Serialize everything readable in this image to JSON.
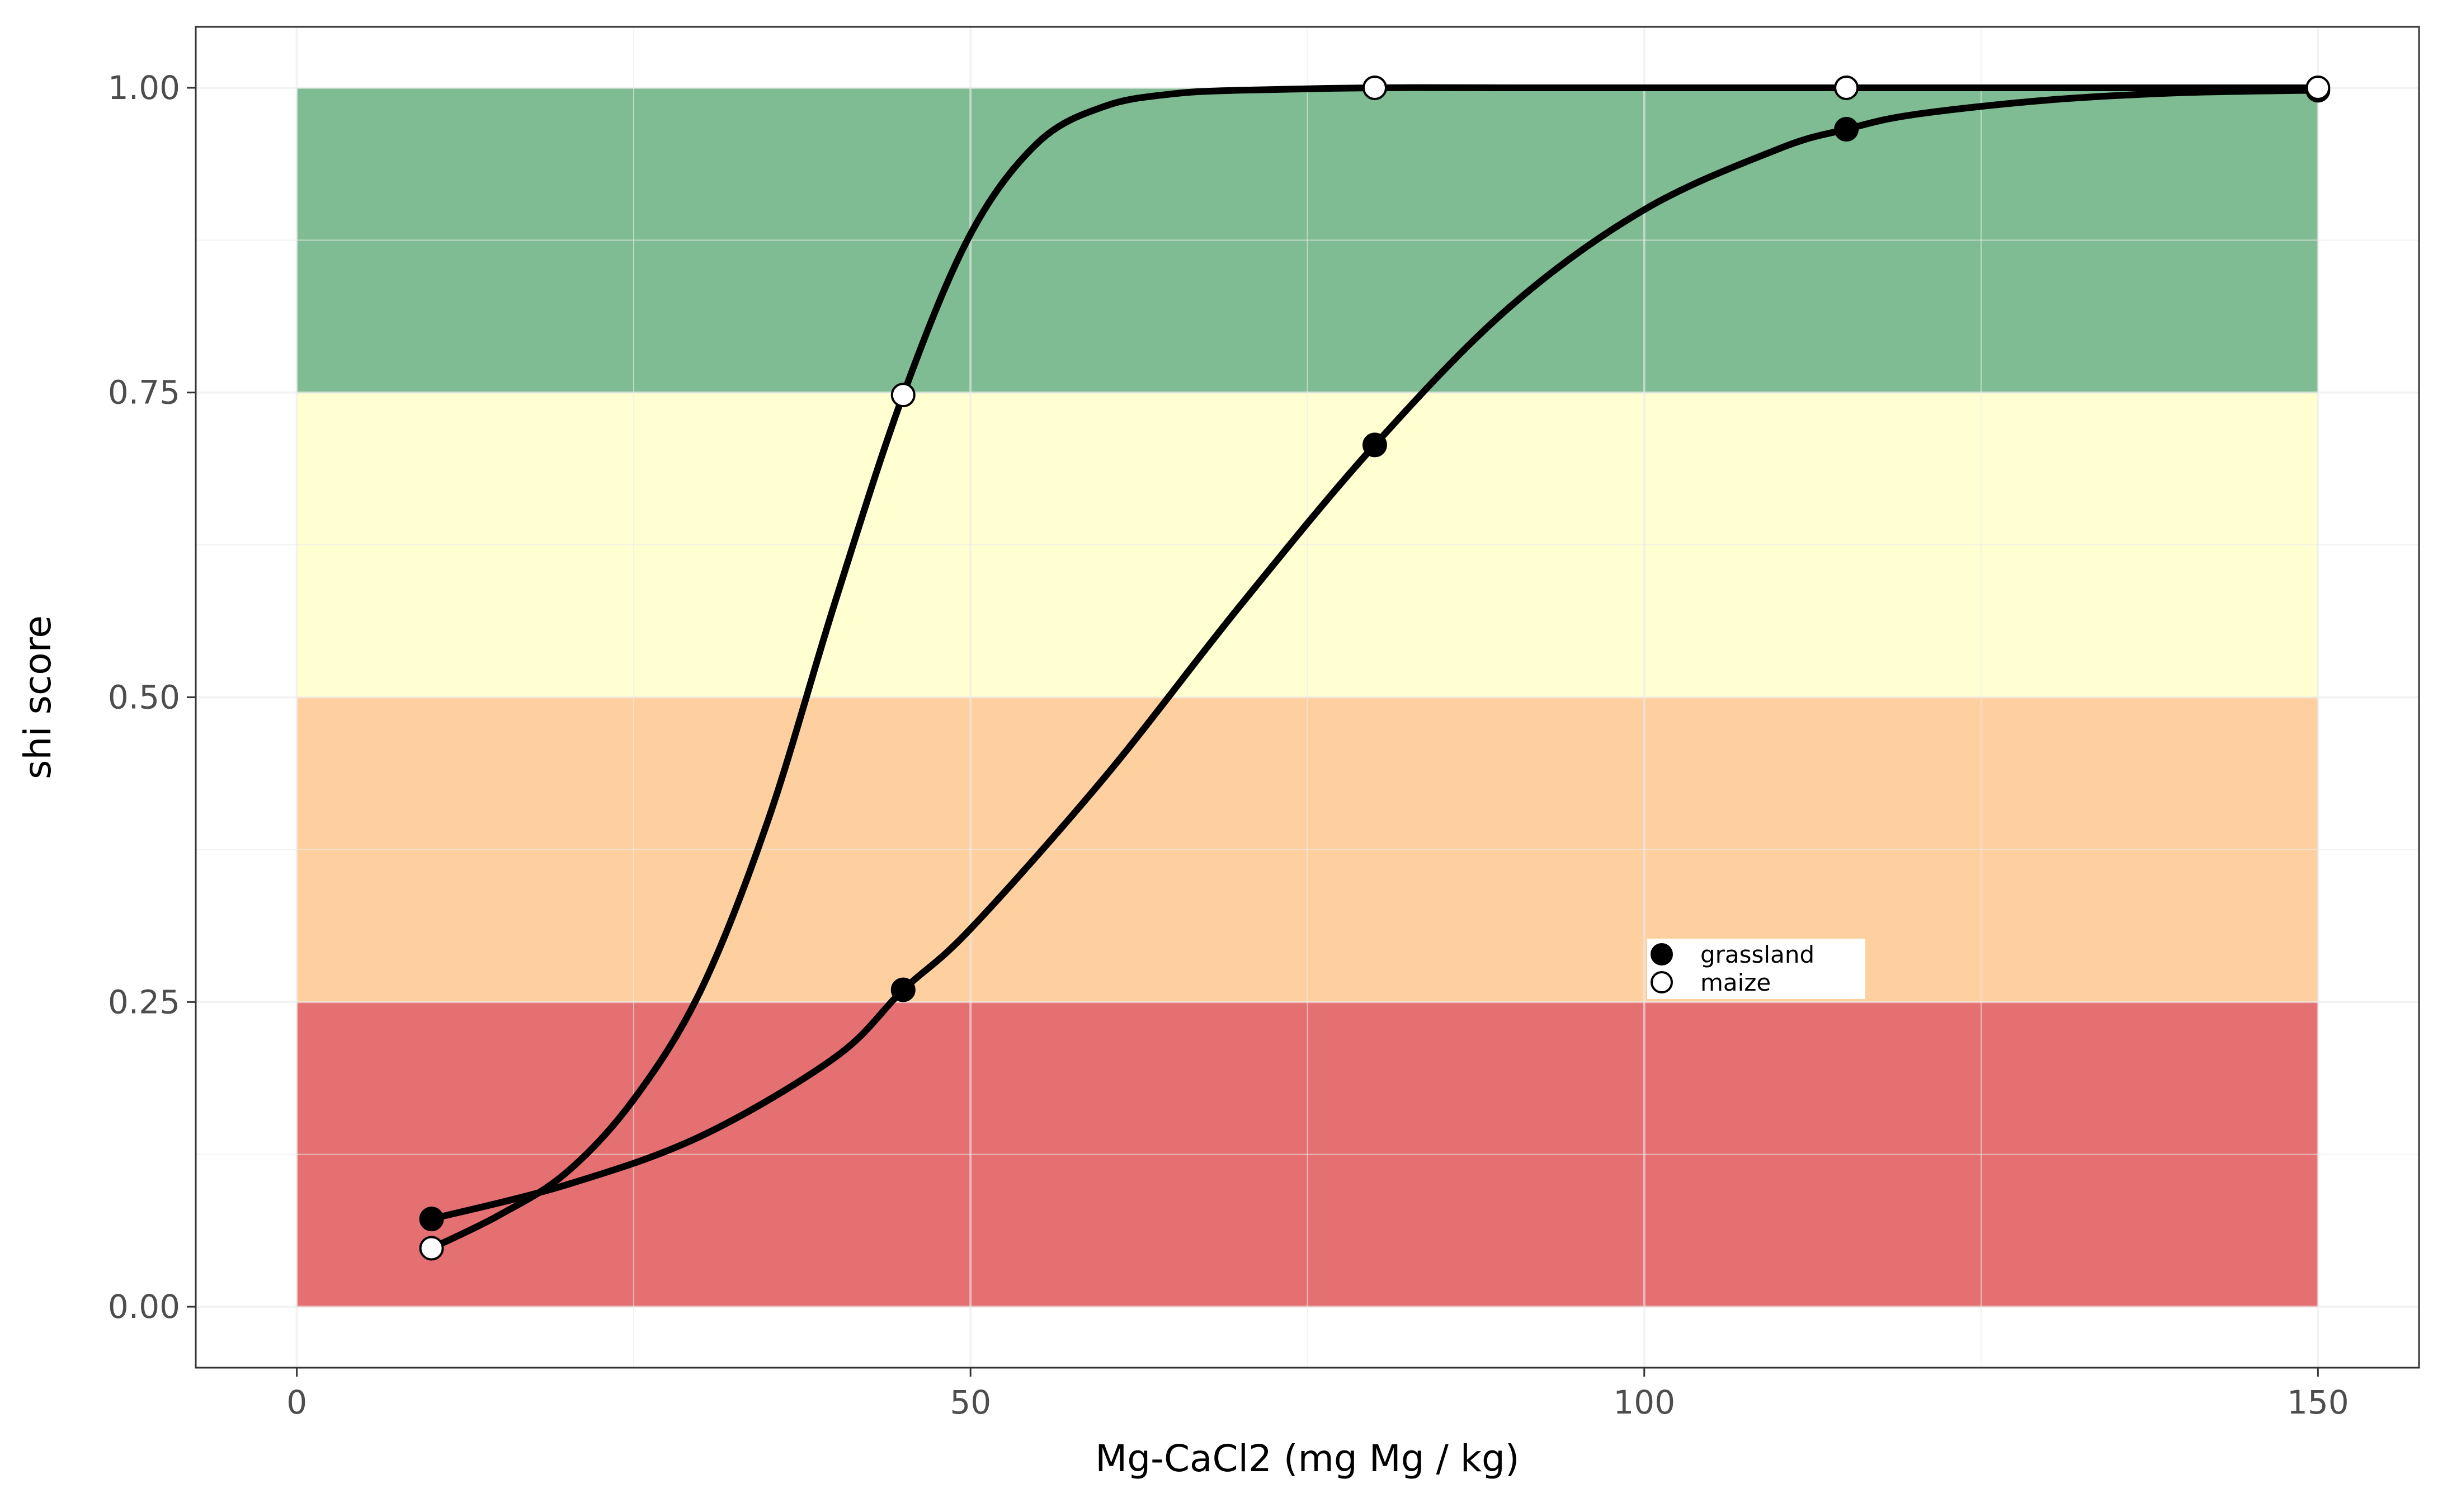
{
  "chart_data": {
    "type": "line",
    "title": "",
    "xlabel": "Mg-CaCl2 (mg Mg / kg)",
    "ylabel": "shi score",
    "xlim": [
      -7.5,
      157.5
    ],
    "ylim": [
      -0.05,
      1.05
    ],
    "x_ticks": [
      0,
      50,
      100,
      150
    ],
    "x_tick_labels": [
      "0",
      "50",
      "100",
      "150"
    ],
    "y_ticks": [
      0,
      0.25,
      0.5,
      0.75,
      1
    ],
    "y_tick_labels": [
      "0.00",
      "0.25",
      "0.50",
      "0.75",
      "1.00"
    ],
    "x_minor_ticks": [
      25,
      75,
      125
    ],
    "y_minor_ticks": [
      0.125,
      0.375,
      0.625,
      0.875
    ],
    "grid": true,
    "legend_position": "inside-center-right",
    "bands": [
      {
        "y0": 0,
        "y1": 0.25,
        "x0": 0,
        "x1": 150,
        "color": "#E15759",
        "opacity": 0.85
      },
      {
        "y0": 0.25,
        "y1": 0.5,
        "x0": 0,
        "x1": 150,
        "color": "#FDBF7F",
        "opacity": 0.75
      },
      {
        "y0": 0.5,
        "y1": 0.75,
        "x0": 0,
        "x1": 150,
        "color": "#FFFFCC",
        "opacity": 0.9
      },
      {
        "y0": 0.75,
        "y1": 1.0,
        "x0": 0,
        "x1": 150,
        "color": "#238B45",
        "opacity": 0.58
      }
    ],
    "series": [
      {
        "name": "grassland",
        "marker_fill": "#000000",
        "points": {
          "x": [
            10,
            45,
            80,
            115,
            150
          ],
          "y": [
            0.072,
            0.26,
            0.707,
            0.966,
            0.998
          ]
        },
        "curve": {
          "x": [
            10,
            20,
            30,
            40,
            45,
            50,
            60,
            70,
            80,
            90,
            100,
            110,
            115,
            120,
            130,
            140,
            150
          ],
          "y": [
            0.072,
            0.1,
            0.14,
            0.205,
            0.26,
            0.31,
            0.435,
            0.575,
            0.707,
            0.82,
            0.9,
            0.95,
            0.966,
            0.978,
            0.99,
            0.996,
            0.998
          ]
        }
      },
      {
        "name": "maize",
        "marker_fill": "#ffffff",
        "points": {
          "x": [
            10,
            45,
            80,
            115,
            150
          ],
          "y": [
            0.048,
            0.748,
            1.0,
            1.0,
            1.0
          ]
        },
        "curve": {
          "x": [
            10,
            15,
            20,
            25,
            30,
            35,
            40,
            45,
            50,
            55,
            60,
            65,
            70,
            80,
            90,
            115,
            150
          ],
          "y": [
            0.048,
            0.075,
            0.11,
            0.17,
            0.26,
            0.4,
            0.58,
            0.748,
            0.88,
            0.955,
            0.985,
            0.995,
            0.998,
            1.0,
            1.0,
            1.0,
            1.0
          ]
        }
      }
    ]
  }
}
